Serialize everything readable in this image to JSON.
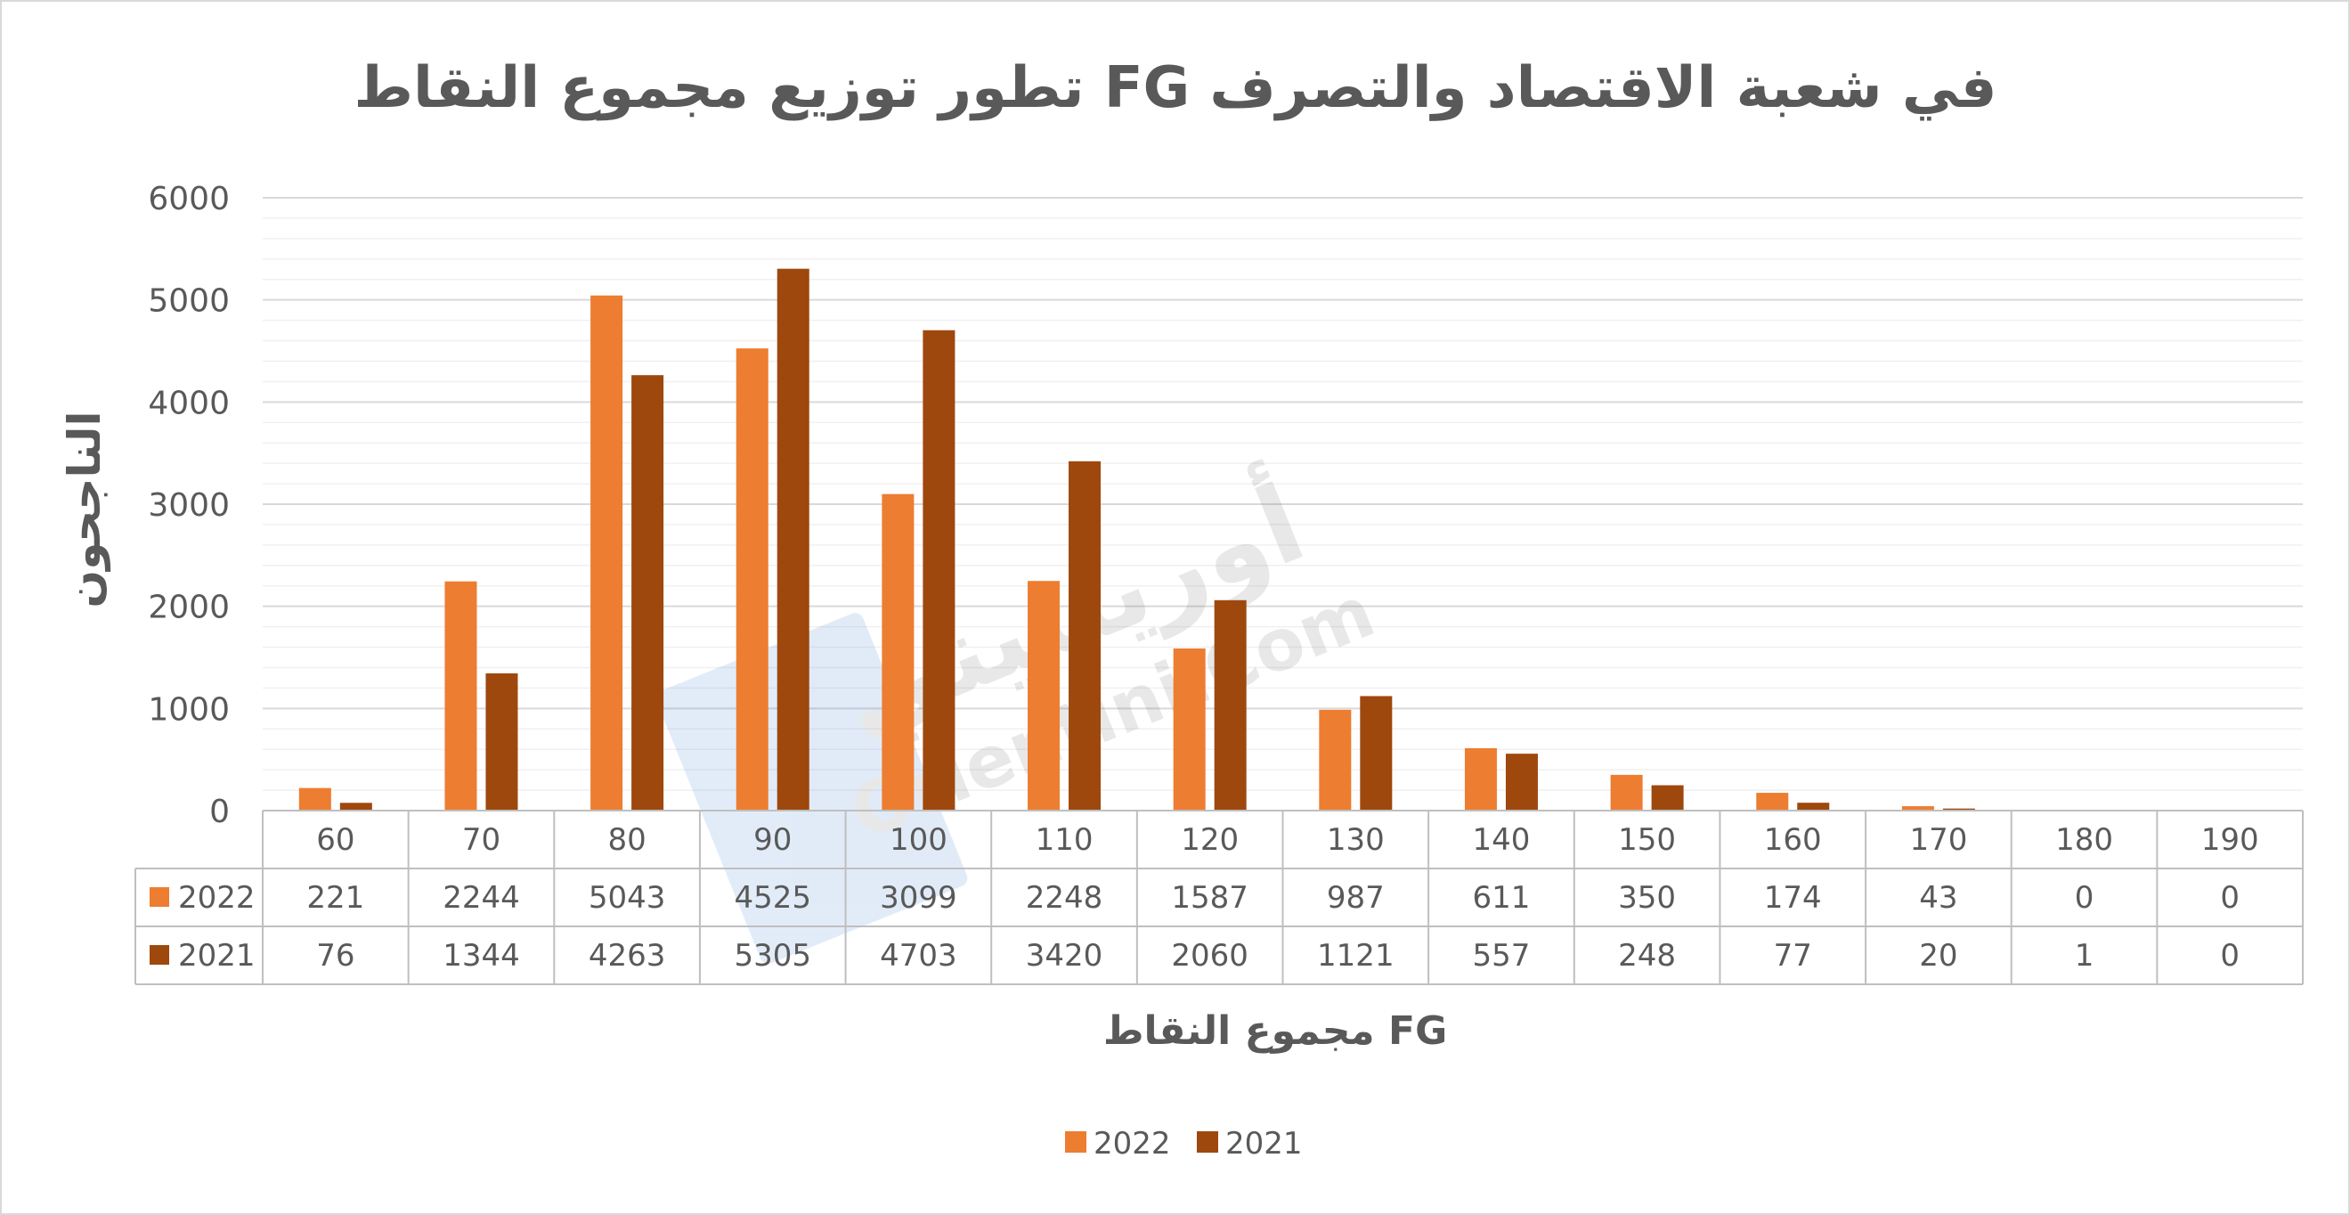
{
  "chart_data": {
    "type": "bar",
    "title": "تطور توزيع مجموع النقاط  FG  في شعبة الاقتصاد والتصرف",
    "xlabel": "مجموع النقاط FG",
    "ylabel": "الناجحون",
    "ylim": [
      0,
      6000
    ],
    "yticks": [
      "0",
      "1000",
      "2000",
      "3000",
      "4000",
      "5000",
      "6000"
    ],
    "grid": true,
    "legend_position": "bottom",
    "data_table": true,
    "categories": [
      "60",
      "70",
      "80",
      "90",
      "100",
      "110",
      "120",
      "130",
      "140",
      "150",
      "160",
      "170",
      "180",
      "190"
    ],
    "series": [
      {
        "name": "2022",
        "color": "#ED7D31",
        "values": [
          221,
          2244,
          5043,
          4525,
          3099,
          2248,
          1587,
          987,
          611,
          350,
          174,
          43,
          0,
          0
        ],
        "labels": [
          "221",
          "2244",
          "5043",
          "4525",
          "3099",
          "2248",
          "1587",
          "987",
          "611",
          "350",
          "174",
          "43",
          "0",
          "0"
        ]
      },
      {
        "name": "2021",
        "color": "#9E480E",
        "values": [
          76,
          1344,
          4263,
          5305,
          4703,
          3420,
          2060,
          1121,
          557,
          248,
          77,
          20,
          1,
          0
        ],
        "labels": [
          "76",
          "1344",
          "4263",
          "5305",
          "4703",
          "3420",
          "2060",
          "1121",
          "557",
          "248",
          "77",
          "20",
          "1",
          "0"
        ]
      }
    ],
    "watermark": {
      "text_ar": "أورينتيني",
      "text_en": "Orientini.Com"
    }
  }
}
